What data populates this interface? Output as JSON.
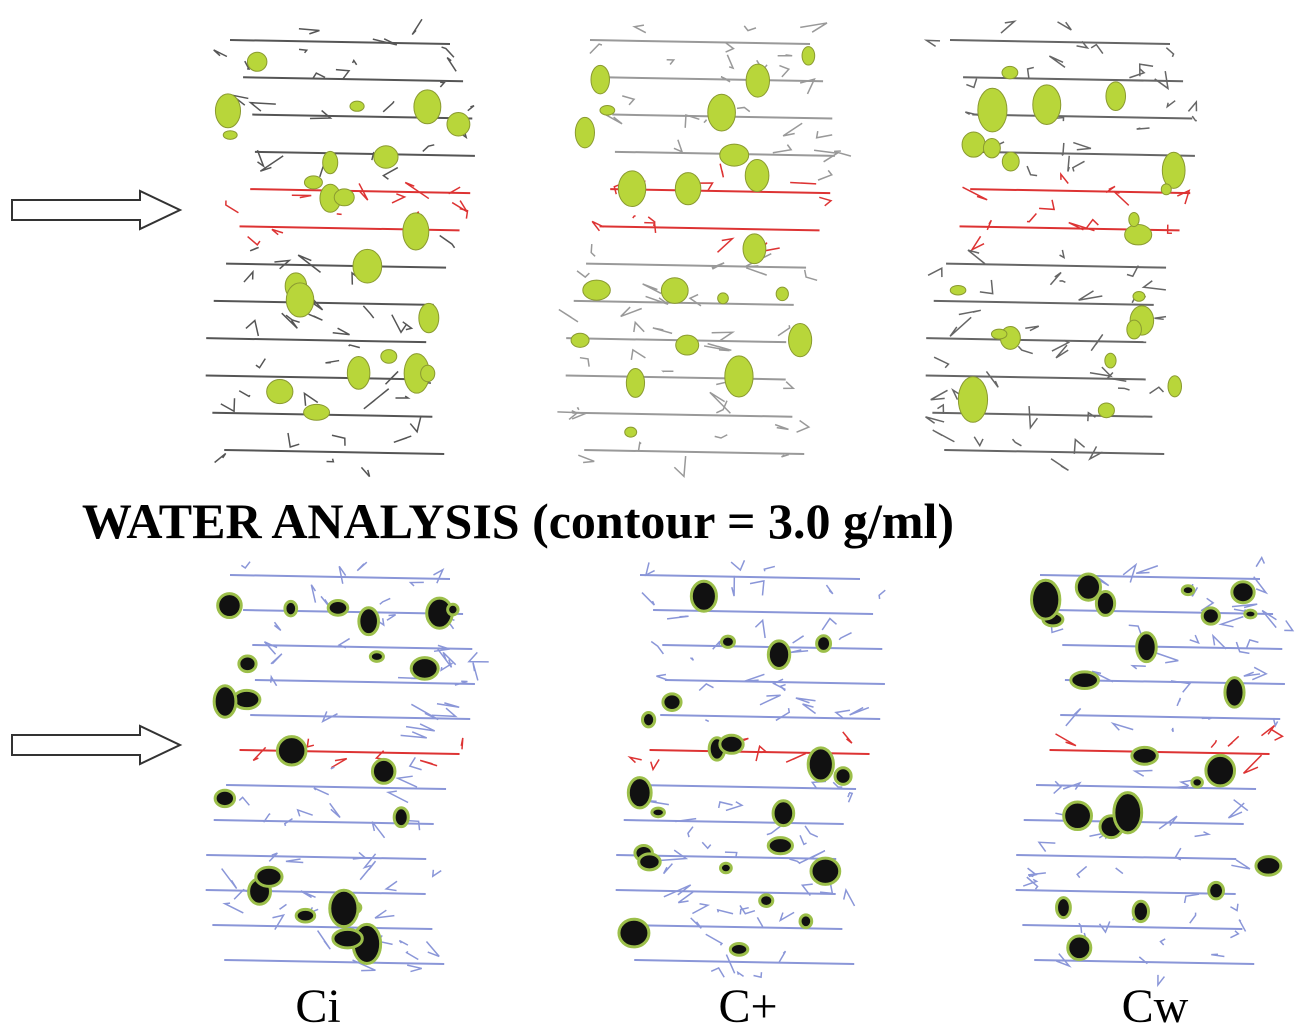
{
  "title": "WATER ANALYSIS (contour = 3.0 g/ml)",
  "panels": [
    {
      "label": "Ci"
    },
    {
      "label": "C+"
    },
    {
      "label": "Cw"
    }
  ]
}
